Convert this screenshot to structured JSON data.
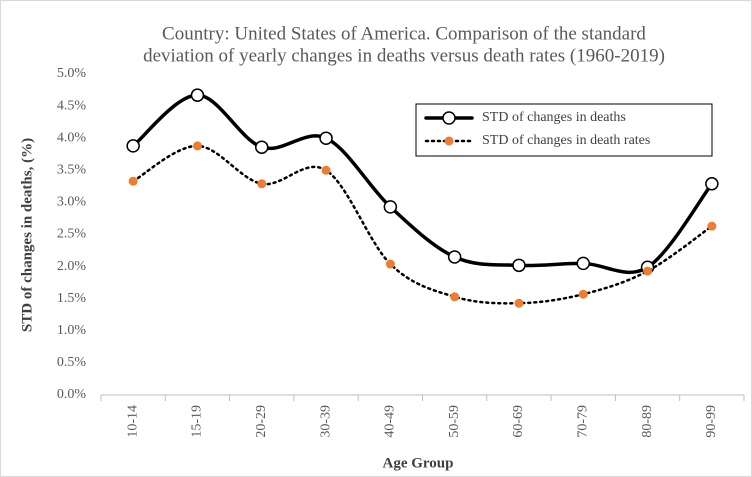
{
  "chart_data": {
    "type": "line",
    "title": [
      "Country: United States of America. Comparison of the standard",
      "deviation of yearly changes in deaths versus death rates (1960-2019)"
    ],
    "x_label": "Age Group",
    "y_label": "STD of changes in deaths, (%)",
    "categories": [
      "10-14",
      "15-19",
      "20-29",
      "30-39",
      "40-49",
      "50-59",
      "60-69",
      "70-79",
      "80-89",
      "90-99"
    ],
    "series": [
      {
        "name": "STD of changes in deaths",
        "color": "#000000",
        "marker_color": "#000000",
        "line_style": "solid",
        "marker": "open-circle",
        "values": [
          3.88,
          4.67,
          3.86,
          4.0,
          2.93,
          2.15,
          2.02,
          2.05,
          1.99,
          3.29
        ]
      },
      {
        "name": "STD of changes in death rates",
        "color": "#000000",
        "marker_color": "#ed7d31",
        "line_style": "dotted",
        "marker": "dot",
        "values": [
          3.33,
          3.88,
          3.29,
          3.5,
          2.04,
          1.53,
          1.43,
          1.57,
          1.93,
          2.63
        ]
      }
    ],
    "ylim": [
      0,
      5
    ],
    "yticks": [
      {
        "value": 0,
        "label": "0.0%"
      },
      {
        "value": 0.5,
        "label": "0.5%"
      },
      {
        "value": 1,
        "label": "1.0%"
      },
      {
        "value": 1.5,
        "label": "1.5%"
      },
      {
        "value": 2,
        "label": "2.0%"
      },
      {
        "value": 2.5,
        "label": "2.5%"
      },
      {
        "value": 3,
        "label": "3.0%"
      },
      {
        "value": 3.5,
        "label": "3.5%"
      },
      {
        "value": 4,
        "label": "4.0%"
      },
      {
        "value": 4.5,
        "label": "4.5%"
      },
      {
        "value": 5,
        "label": "5.0%"
      }
    ],
    "legend": "top-right",
    "smooth": true
  }
}
